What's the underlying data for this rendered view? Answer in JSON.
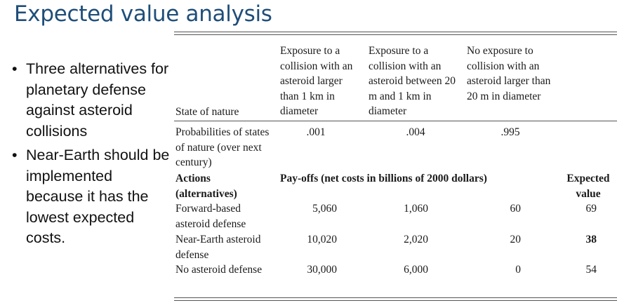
{
  "title": "Expected value analysis",
  "bullets": [
    "Three alternatives for planetary defense against asteroid collisions",
    "Near-Earth should be implemented because it has the lowest expected costs."
  ],
  "table": {
    "headers": {
      "state_of_nature": "State of nature",
      "col1": "Exposure to a collision with an asteroid larger than 1 km in diameter",
      "col2": "Exposure to a collision with an asteroid between 20 m and 1 km in diameter",
      "col3": "No exposure to collision with an asteroid larger than 20 m in diameter"
    },
    "probabilities": {
      "label": "Probabilities of states of nature (over next century)",
      "values": [
        ".001",
        ".004",
        ".995"
      ]
    },
    "actions_label": "Actions (alternatives)",
    "payoffs_label": "Pay-offs (net costs in billions of 2000 dollars)",
    "expected_label": "Expected value",
    "rows": [
      {
        "name": "Forward-based asteroid defense",
        "values": [
          "5,060",
          "1,060",
          "60"
        ],
        "expected": "69",
        "bold": false
      },
      {
        "name": "Near-Earth asteroid defense",
        "values": [
          "10,020",
          "2,020",
          "20"
        ],
        "expected": "38",
        "bold": true
      },
      {
        "name": "No asteroid defense",
        "values": [
          "30,000",
          "6,000",
          "0"
        ],
        "expected": "54",
        "bold": false
      }
    ]
  }
}
